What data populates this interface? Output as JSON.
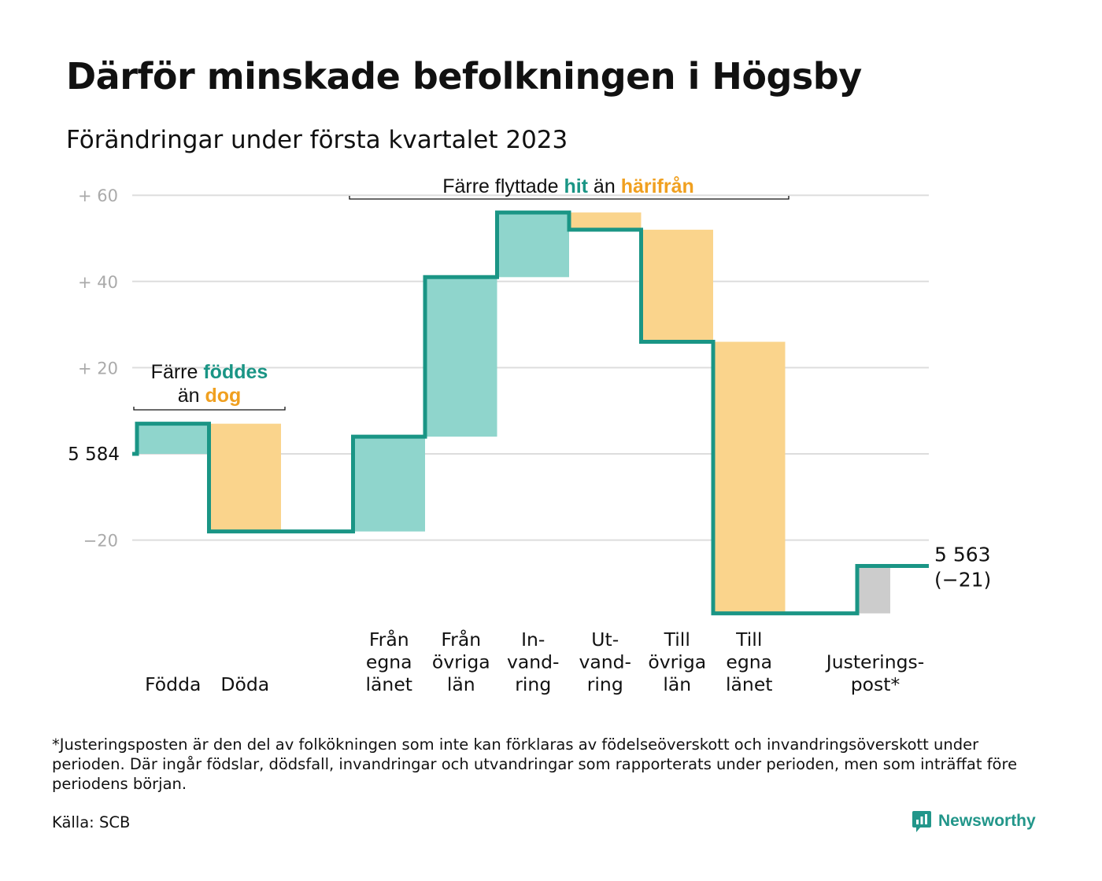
{
  "header": {
    "title": "Därför minskade befolkningen i Högsby",
    "subtitle": "Förändringar under första kvartalet 2023"
  },
  "colors": {
    "inflow": "#8fd5cc",
    "outflow": "#fad48c",
    "adjustment": "#cccccc",
    "line": "#1a9585",
    "teal_text": "#1a9585",
    "orange_text": "#f0a020",
    "grid": "#dddddd",
    "tick_text": "#aaaaaa"
  },
  "chart_data": {
    "type": "waterfall",
    "start": {
      "value": 5584,
      "label": "5 584"
    },
    "end": {
      "value": 5563,
      "label": "5 563",
      "change_label": "(−21)"
    },
    "y_axis": {
      "ylim": [
        -37,
        63
      ],
      "ticks": [
        {
          "value": 60,
          "label": "+ 60"
        },
        {
          "value": 40,
          "label": "+ 40"
        },
        {
          "value": 20,
          "label": "+ 20"
        },
        {
          "value": 0,
          "label": "5 584"
        },
        {
          "value": -20,
          "label": "−20"
        }
      ],
      "grid": true
    },
    "steps": [
      {
        "label": [
          "Födda"
        ],
        "change": 7,
        "kind": "inflow"
      },
      {
        "label": [
          "Döda"
        ],
        "change": -25,
        "kind": "outflow"
      },
      {
        "label": [],
        "change": 0,
        "kind": "gap"
      },
      {
        "label": [
          "Från",
          "egna",
          "länet"
        ],
        "change": 22,
        "kind": "inflow"
      },
      {
        "label": [
          "Från",
          "övriga",
          "län"
        ],
        "change": 37,
        "kind": "inflow"
      },
      {
        "label": [
          "In-",
          "vand-",
          "ring"
        ],
        "change": 15,
        "kind": "inflow"
      },
      {
        "label": [
          "Ut-",
          "vand-",
          "ring"
        ],
        "change": -4,
        "kind": "outflow"
      },
      {
        "label": [
          "Till",
          "övriga",
          "län"
        ],
        "change": -26,
        "kind": "outflow"
      },
      {
        "label": [
          "Till",
          "egna",
          "länet"
        ],
        "change": -63,
        "kind": "outflow"
      },
      {
        "label": [],
        "change": 0,
        "kind": "gap"
      },
      {
        "label": [
          "Justerings-",
          "post*"
        ],
        "change": 11,
        "kind": "adjustment"
      }
    ],
    "annotations": [
      {
        "id": "births",
        "lines": [
          [
            {
              "text": "Färre ",
              "color": "plain"
            },
            {
              "text": "föddes",
              "color": "teal"
            }
          ],
          [
            {
              "text": "än ",
              "color": "plain"
            },
            {
              "text": "dog",
              "color": "orange"
            }
          ]
        ]
      },
      {
        "id": "migration",
        "lines": [
          [
            {
              "text": "Färre flyttade ",
              "color": "plain"
            },
            {
              "text": "hit",
              "color": "teal"
            },
            {
              "text": " än ",
              "color": "plain"
            },
            {
              "text": "härifrån",
              "color": "orange"
            }
          ]
        ]
      }
    ]
  },
  "footer": {
    "footnote": "*Justeringsposten är den del av folkökningen som inte kan förklaras av födelseöverskott och invandringsöverskott under perioden. Där ingår födslar, dödsfall, invandringar och utvandringar som rapporterats under perioden, men som inträffat före periodens början.",
    "source": "Källa: SCB",
    "brand": "Newsworthy",
    "brand_icon": "newsworthy-logo-icon"
  }
}
